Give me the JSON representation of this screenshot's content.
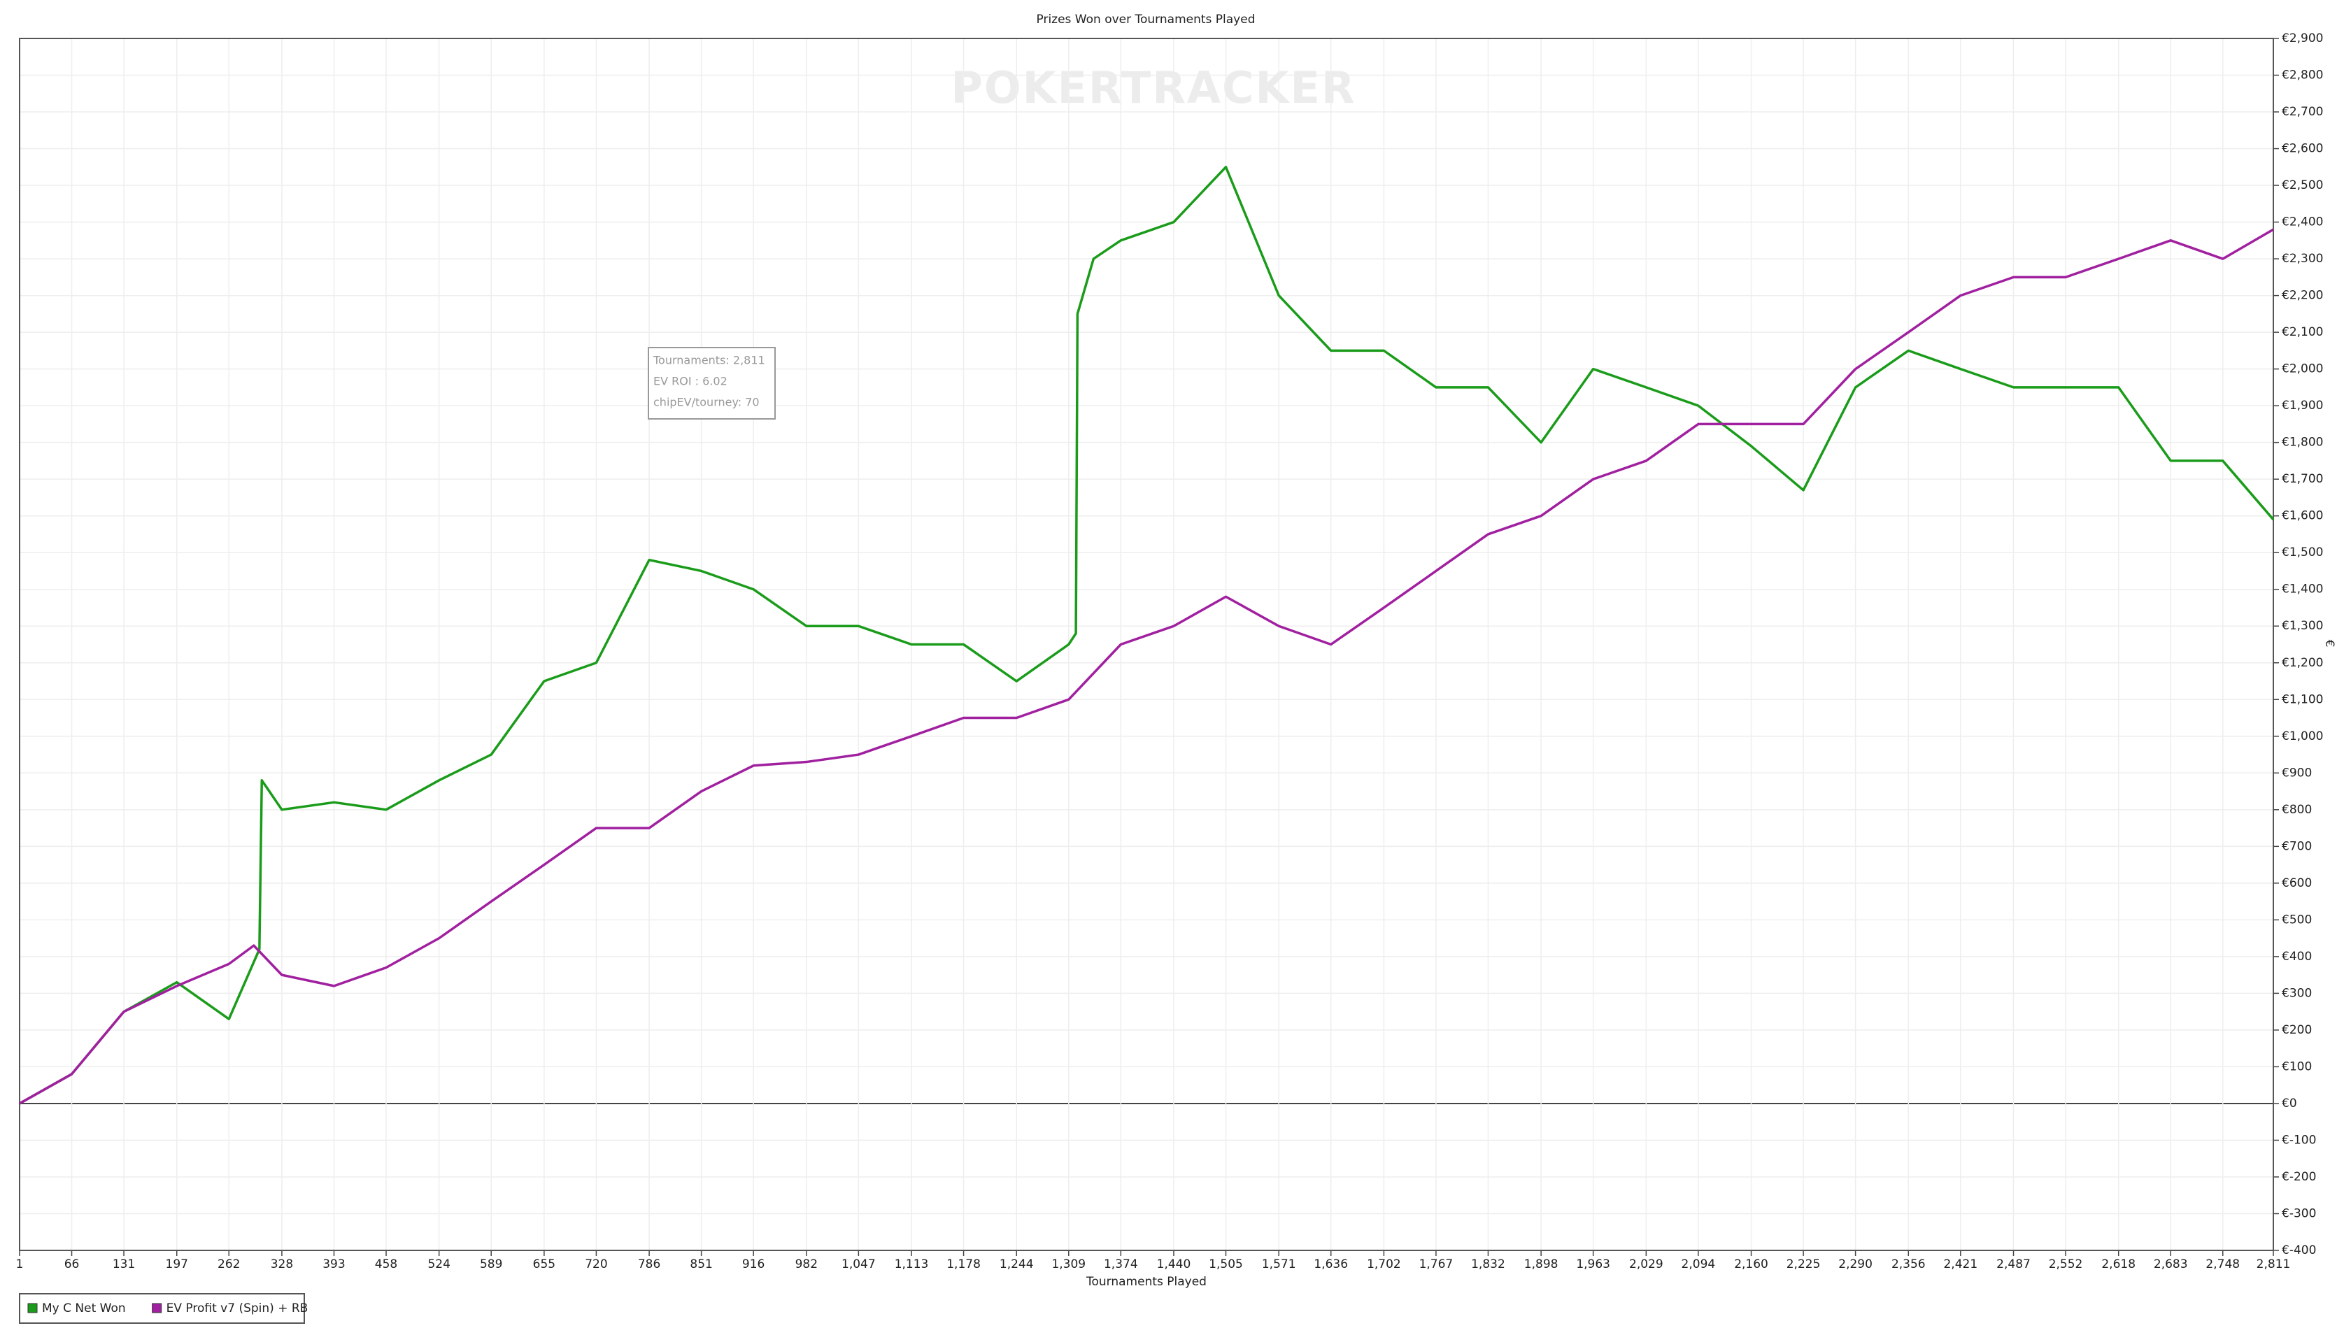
{
  "chart_data": {
    "type": "line",
    "title": "Prizes Won over Tournaments Played",
    "watermark": "POKERTRACKER",
    "x_label": "Tournaments Played",
    "y_label": "€",
    "tooltip": [
      "Tournaments: 2,811",
      "EV ROI : 6.02",
      "chipEV/tourney: 70"
    ],
    "grid": true,
    "legend": "bottom-left",
    "xlim": [
      1,
      2811
    ],
    "ylim": [
      -400,
      2900
    ],
    "xticks": [
      1,
      66,
      131,
      197,
      262,
      328,
      393,
      458,
      524,
      589,
      655,
      720,
      786,
      851,
      916,
      982,
      {
        "value": 1047,
        "label": "1,047"
      },
      {
        "value": 1113,
        "label": "1,113"
      },
      {
        "value": 1178,
        "label": "1,178"
      },
      {
        "value": 1244,
        "label": "1,244"
      },
      {
        "value": 1309,
        "label": "1,309"
      },
      {
        "value": 1374,
        "label": "1,374"
      },
      {
        "value": 1440,
        "label": "1,440"
      },
      {
        "value": 1505,
        "label": "1,505"
      },
      {
        "value": 1571,
        "label": "1,571"
      },
      {
        "value": 1636,
        "label": "1,636"
      },
      {
        "value": 1702,
        "label": "1,702"
      },
      {
        "value": 1767,
        "label": "1,767"
      },
      {
        "value": 1832,
        "label": "1,832"
      },
      {
        "value": 1898,
        "label": "1,898"
      },
      {
        "value": 1963,
        "label": "1,963"
      },
      {
        "value": 2029,
        "label": "2,029"
      },
      {
        "value": 2094,
        "label": "2,094"
      },
      {
        "value": 2160,
        "label": "2,160"
      },
      {
        "value": 2225,
        "label": "2,225"
      },
      {
        "value": 2290,
        "label": "2,290"
      },
      {
        "value": 2356,
        "label": "2,356"
      },
      {
        "value": 2421,
        "label": "2,421"
      },
      {
        "value": 2487,
        "label": "2,487"
      },
      {
        "value": 2552,
        "label": "2,552"
      },
      {
        "value": 2618,
        "label": "2,618"
      },
      {
        "value": 2683,
        "label": "2,683"
      },
      {
        "value": 2748,
        "label": "2,748"
      },
      {
        "value": 2811,
        "label": "2,811"
      }
    ],
    "yticks": [
      {
        "value": -400,
        "label": "€-400"
      },
      {
        "value": -300,
        "label": "€-300"
      },
      {
        "value": -200,
        "label": "€-200"
      },
      {
        "value": -100,
        "label": "€-100"
      },
      {
        "value": 0,
        "label": "€0"
      },
      {
        "value": 100,
        "label": "€100"
      },
      {
        "value": 200,
        "label": "€200"
      },
      {
        "value": 300,
        "label": "€300"
      },
      {
        "value": 400,
        "label": "€400"
      },
      {
        "value": 500,
        "label": "€500"
      },
      {
        "value": 600,
        "label": "€600"
      },
      {
        "value": 700,
        "label": "€700"
      },
      {
        "value": 800,
        "label": "€800"
      },
      {
        "value": 900,
        "label": "€900"
      },
      {
        "value": 1000,
        "label": "€1,000"
      },
      {
        "value": 1100,
        "label": "€1,100"
      },
      {
        "value": 1200,
        "label": "€1,200"
      },
      {
        "value": 1300,
        "label": "€1,300"
      },
      {
        "value": 1400,
        "label": "€1,400"
      },
      {
        "value": 1500,
        "label": "€1,500"
      },
      {
        "value": 1600,
        "label": "€1,600"
      },
      {
        "value": 1700,
        "label": "€1,700"
      },
      {
        "value": 1800,
        "label": "€1,800"
      },
      {
        "value": 1900,
        "label": "€1,900"
      },
      {
        "value": 2000,
        "label": "€2,000"
      },
      {
        "value": 2100,
        "label": "€2,100"
      },
      {
        "value": 2200,
        "label": "€2,200"
      },
      {
        "value": 2300,
        "label": "€2,300"
      },
      {
        "value": 2400,
        "label": "€2,400"
      },
      {
        "value": 2500,
        "label": "€2,500"
      },
      {
        "value": 2600,
        "label": "€2,600"
      },
      {
        "value": 2700,
        "label": "€2,700"
      },
      {
        "value": 2800,
        "label": "€2,800"
      },
      {
        "value": 2900,
        "label": "€2,900"
      }
    ],
    "series": [
      {
        "name": "My C Net Won",
        "color": "#1a9c1a",
        "x": [
          1,
          66,
          131,
          197,
          262,
          300,
          303,
          328,
          393,
          458,
          524,
          589,
          655,
          720,
          786,
          851,
          916,
          982,
          1047,
          1113,
          1178,
          1244,
          1309,
          1318,
          1320,
          1340,
          1374,
          1440,
          1505,
          1571,
          1636,
          1702,
          1767,
          1832,
          1898,
          1963,
          2029,
          2094,
          2160,
          2225,
          2290,
          2356,
          2421,
          2487,
          2552,
          2618,
          2683,
          2748,
          2811
        ],
        "values": [
          0,
          80,
          250,
          330,
          230,
          420,
          880,
          800,
          820,
          800,
          880,
          950,
          1150,
          1200,
          1480,
          1450,
          1400,
          1300,
          1300,
          1250,
          1250,
          1150,
          1250,
          1280,
          2150,
          2300,
          2350,
          2400,
          2550,
          2200,
          2050,
          2050,
          1950,
          1950,
          1800,
          2000,
          1950,
          1900,
          1790,
          1670,
          1950,
          2050,
          2000,
          1950,
          1950,
          1950,
          1750,
          1750,
          1590
        ]
      },
      {
        "name": "EV Profit v7 (Spin) + RB",
        "color": "#a020a0",
        "x": [
          1,
          66,
          131,
          197,
          262,
          293,
          328,
          393,
          458,
          524,
          589,
          655,
          720,
          786,
          851,
          916,
          982,
          1047,
          1113,
          1178,
          1244,
          1309,
          1374,
          1440,
          1505,
          1571,
          1636,
          1702,
          1767,
          1832,
          1898,
          1963,
          2029,
          2094,
          2160,
          2225,
          2290,
          2356,
          2421,
          2487,
          2552,
          2618,
          2683,
          2748,
          2811
        ],
        "values": [
          0,
          80,
          250,
          320,
          380,
          430,
          350,
          320,
          370,
          450,
          550,
          650,
          750,
          750,
          850,
          920,
          930,
          950,
          1000,
          1050,
          1050,
          1100,
          1250,
          1300,
          1380,
          1300,
          1250,
          1350,
          1450,
          1550,
          1600,
          1700,
          1750,
          1850,
          1850,
          1850,
          2000,
          2100,
          2200,
          2250,
          2250,
          2300,
          2350,
          2300,
          2380
        ]
      }
    ]
  }
}
